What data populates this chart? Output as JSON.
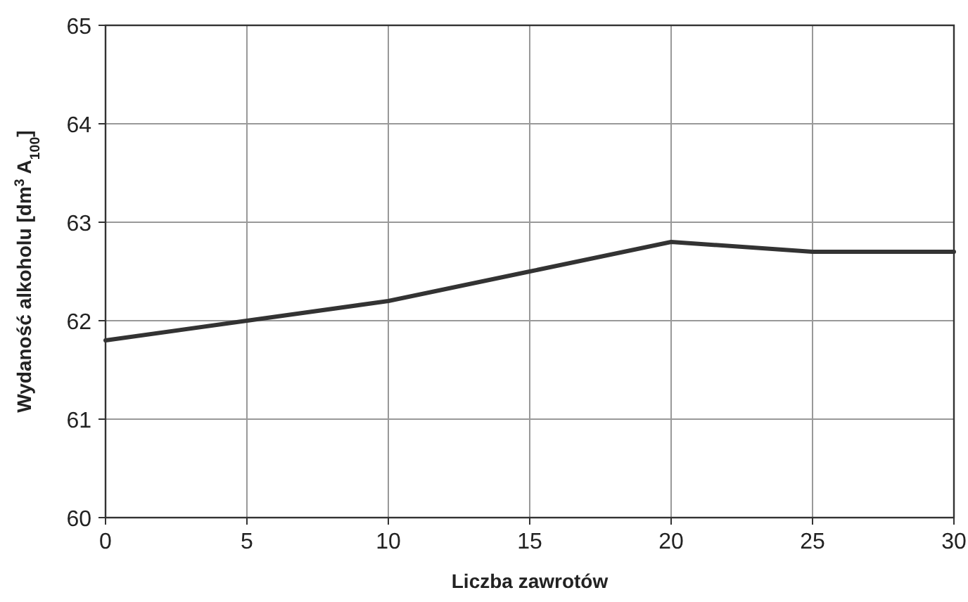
{
  "chart_data": {
    "type": "line",
    "xlabel": "Liczba zawrotów",
    "ylabel": "Wydaność alkoholu [dm$^{3}$ A$_{100}$]",
    "x": [
      0,
      5,
      10,
      15,
      20,
      25,
      30
    ],
    "series": [
      {
        "color": "#333333",
        "values": [
          61.8,
          62.0,
          62.2,
          62.5,
          62.8,
          62.7,
          62.7
        ]
      }
    ],
    "xlim": [
      0,
      30
    ],
    "xticks": [
      0,
      5,
      10,
      15,
      20,
      25,
      30
    ],
    "ylim": [
      60,
      65
    ],
    "yticks": [
      60,
      61,
      62,
      63,
      64,
      65
    ],
    "grid": true,
    "marker": "none",
    "line_style": "solid"
  }
}
